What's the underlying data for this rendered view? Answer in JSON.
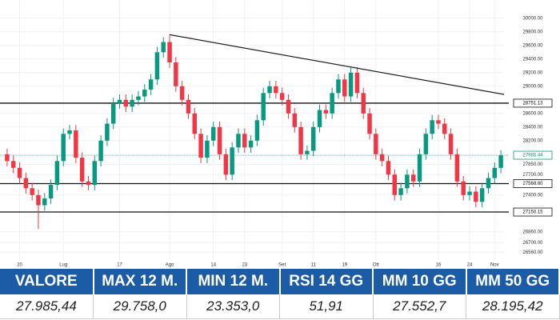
{
  "chart_data": {
    "type": "candlestick",
    "categories": [
      null,
      null,
      "20",
      null,
      null,
      null,
      null,
      null,
      null,
      "Lug",
      null,
      null,
      null,
      null,
      null,
      null,
      null,
      null,
      "17",
      null,
      null,
      null,
      null,
      null,
      null,
      null,
      "Ago",
      null,
      null,
      null,
      null,
      null,
      null,
      "14",
      null,
      null,
      null,
      null,
      "23",
      null,
      null,
      null,
      null,
      null,
      "Set",
      null,
      null,
      null,
      null,
      "11",
      null,
      null,
      null,
      null,
      "19",
      null,
      null,
      null,
      null,
      "Ott",
      null,
      null,
      null,
      null,
      null,
      null,
      null,
      null,
      null,
      "16",
      null,
      null,
      null,
      null,
      "24",
      null,
      null,
      null,
      "Nov",
      null
    ],
    "open": [
      28000,
      27900,
      27800,
      27650,
      27500,
      27400,
      27250,
      27350,
      27550,
      27900,
      28300,
      28350,
      27950,
      27600,
      27550,
      27900,
      28200,
      28450,
      28750,
      28800,
      28700,
      28800,
      28850,
      28950,
      29100,
      29500,
      29650,
      29350,
      29000,
      28800,
      28600,
      28300,
      27950,
      28200,
      28400,
      28000,
      27700,
      28100,
      28300,
      28100,
      28200,
      28500,
      28900,
      29000,
      28900,
      28800,
      28600,
      28400,
      28000,
      28050,
      28400,
      28650,
      28600,
      28900,
      29100,
      28850,
      29200,
      28900,
      28600,
      28300,
      28000,
      27900,
      27700,
      27400,
      27500,
      27700,
      27600,
      28000,
      28300,
      28500,
      28450,
      28300,
      28000,
      27600,
      27400,
      27450,
      27300,
      27500,
      27650,
      27800
    ],
    "high": [
      28080,
      27980,
      27880,
      27730,
      27580,
      27480,
      27430,
      27630,
      27980,
      28380,
      28430,
      28430,
      28030,
      27680,
      27980,
      28280,
      28530,
      28830,
      28880,
      28880,
      28880,
      28930,
      29030,
      29180,
      29580,
      29720,
      29758,
      29430,
      29080,
      28880,
      28680,
      28380,
      28280,
      28480,
      28480,
      28080,
      28180,
      28380,
      28380,
      28280,
      28580,
      28980,
      29080,
      29080,
      28980,
      28880,
      28680,
      28480,
      28130,
      28480,
      28730,
      28730,
      28980,
      29180,
      29180,
      29280,
      29280,
      28980,
      28680,
      28380,
      28080,
      27980,
      27780,
      27580,
      27780,
      27780,
      28080,
      28380,
      28580,
      28580,
      28530,
      28380,
      28080,
      27680,
      27530,
      27530,
      27580,
      27730,
      27880,
      28060
    ],
    "low": [
      27820,
      27720,
      27570,
      27420,
      27320,
      26900,
      27170,
      27270,
      27470,
      27820,
      28220,
      27870,
      27520,
      27470,
      27470,
      27820,
      28120,
      28370,
      28670,
      28620,
      28620,
      28720,
      28770,
      28870,
      29020,
      29420,
      29270,
      28920,
      28720,
      28520,
      28220,
      27870,
      27870,
      28120,
      27920,
      27620,
      27620,
      28020,
      28020,
      28020,
      28120,
      28420,
      28820,
      28820,
      28720,
      28520,
      28320,
      27920,
      27920,
      27970,
      28320,
      28520,
      28520,
      28820,
      28770,
      28770,
      28820,
      28520,
      28220,
      27920,
      27820,
      27620,
      27320,
      27320,
      27420,
      27520,
      27520,
      27920,
      28220,
      28370,
      28220,
      27920,
      27520,
      27320,
      27320,
      27220,
      27220,
      27420,
      27570,
      27720
    ],
    "close": [
      27900,
      27800,
      27650,
      27500,
      27400,
      27250,
      27350,
      27550,
      27900,
      28300,
      28350,
      27950,
      27600,
      27550,
      27900,
      28200,
      28450,
      28750,
      28800,
      28700,
      28800,
      28850,
      28950,
      29100,
      29500,
      29650,
      29350,
      29000,
      28800,
      28600,
      28300,
      27950,
      28200,
      28400,
      28000,
      27700,
      28100,
      28300,
      28100,
      28200,
      28500,
      28900,
      29000,
      28900,
      28800,
      28600,
      28400,
      28000,
      28050,
      28400,
      28650,
      28600,
      28900,
      29100,
      28850,
      29200,
      28900,
      28600,
      28300,
      28000,
      27900,
      27700,
      27400,
      27500,
      27700,
      27600,
      28000,
      28300,
      28500,
      28450,
      28300,
      28000,
      27600,
      27400,
      27450,
      27300,
      27500,
      27650,
      27800,
      27985.44
    ],
    "up_color": "#089981",
    "down_color": "#f23645",
    "ylim": [
      26480,
      30080
    ],
    "yticks": [
      {
        "value": 30000,
        "label": "30000.00"
      },
      {
        "value": 29800,
        "label": "29800.00"
      },
      {
        "value": 29600,
        "label": "29600.00"
      },
      {
        "value": 29400,
        "label": "29400.00"
      },
      {
        "value": 29200,
        "label": "29200.00"
      },
      {
        "value": 29000,
        "label": "29000.00"
      },
      {
        "value": 28600,
        "label": "28600.00"
      },
      {
        "value": 28400,
        "label": "28400.00"
      },
      {
        "value": 28200,
        "label": "28200.00"
      },
      {
        "value": 27850,
        "label": "27850.00"
      },
      {
        "value": 27700,
        "label": "27700.00"
      },
      {
        "value": 27400,
        "label": "27400.00"
      },
      {
        "value": 26860,
        "label": "26860.00"
      },
      {
        "value": 26700,
        "label": "26700.00"
      },
      {
        "value": 26560,
        "label": "26560.00"
      }
    ],
    "levels": [
      {
        "value": 28751.13,
        "label": "28751.13"
      },
      {
        "value": 27568.6,
        "label": "27568.60"
      },
      {
        "value": 27150.15,
        "label": "27150.15"
      }
    ],
    "last_price": {
      "value": 27985.44,
      "label": "27985.44"
    },
    "trendline": [
      29758,
      28880
    ],
    "grid": true
  },
  "table": {
    "headers": [
      "VALORE",
      "MAX 12 M.",
      "MIN 12 M.",
      "RSI 14 GG",
      "MM 10 GG",
      "MM 50 GG"
    ],
    "rows": [
      [
        "27.985,44",
        "29.758,0",
        "23.353,0",
        "51,91",
        "27.552,7",
        "28.195,42"
      ]
    ]
  }
}
